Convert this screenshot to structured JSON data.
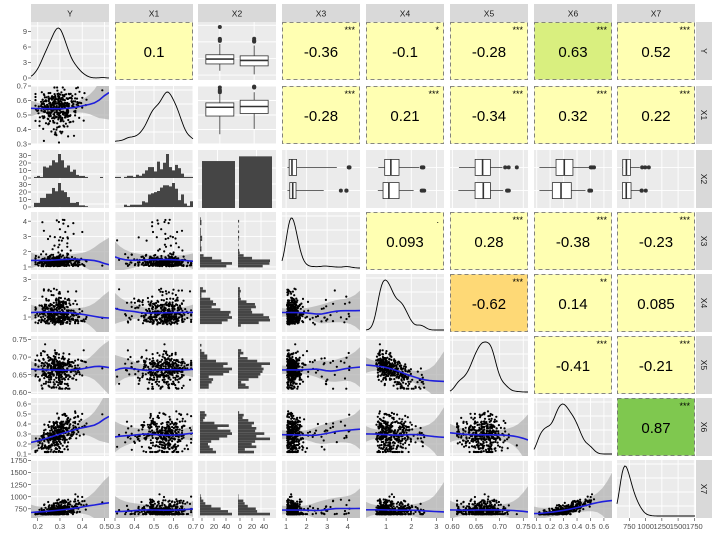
{
  "chart_data": {
    "type": "scatter",
    "variables": [
      "Y",
      "X1",
      "X2",
      "X3",
      "X4",
      "X5",
      "X6",
      "X7"
    ],
    "ranges": {
      "Y": [
        0.17,
        0.52
      ],
      "X1": [
        0.3,
        0.7
      ],
      "X2": [
        0,
        1
      ],
      "X3": [
        0.8,
        4.6
      ],
      "X4": [
        0.2,
        3.3
      ],
      "X5": [
        0.595,
        0.76
      ],
      "X6": [
        0.08,
        0.66
      ],
      "X7": [
        560,
        1760
      ]
    },
    "axis_ticks": {
      "Y": [
        "0.2",
        "0.3",
        "0.4",
        "0.5"
      ],
      "X1": [
        "0.3",
        "0.4",
        "0.5",
        "0.6",
        "0.7"
      ],
      "X3": [
        "1",
        "2",
        "3",
        "4"
      ],
      "X4": [
        "1",
        "2",
        "3"
      ],
      "X5": [
        "0.60",
        "0.65",
        "0.70",
        "0.75"
      ],
      "X6": [
        "0.1",
        "0.2",
        "0.3",
        "0.4",
        "0.5",
        "0.6"
      ],
      "X7": [
        "750",
        "1000",
        "1250",
        "1500",
        "1750"
      ]
    },
    "x_bottom_labels": [
      [
        "0.2",
        "0.3",
        "0.4",
        "0.5"
      ],
      [
        "0.3",
        "0.4",
        "0.5",
        "0.6",
        "0.7"
      ],
      [
        "0",
        "20",
        "40",
        "0",
        "20",
        "40"
      ],
      [
        "1",
        "2",
        "3",
        "4"
      ],
      [
        "1",
        "2",
        "3"
      ],
      [
        "0.60",
        "0.65",
        "0.70",
        "0.75"
      ],
      [
        "0.1",
        "0.2",
        "0.3",
        "0.4",
        "0.5",
        "0.6"
      ],
      [
        "750",
        "1000",
        "1250",
        "1500",
        "1750"
      ]
    ],
    "y_left_labels": [
      [
        "0",
        "3",
        "6",
        "9"
      ],
      [
        "0.3",
        "0.4",
        "0.5",
        "0.6",
        "0.7"
      ],
      [
        "0",
        "10",
        "20",
        "30",
        "0",
        "10",
        "20",
        "30"
      ],
      [
        "1",
        "2",
        "3",
        "4"
      ],
      [
        "1",
        "2",
        "3"
      ],
      [
        "0.60",
        "0.65",
        "0.70",
        "0.75"
      ],
      [
        "0.1",
        "0.2",
        "0.3",
        "0.4",
        "0.5",
        "0.6"
      ],
      [
        "750",
        "1000",
        "1250",
        "1500",
        "1750"
      ]
    ],
    "correlations": [
      {
        "row": "Y",
        "col": "X1",
        "value": "0.1",
        "stars": ""
      },
      {
        "row": "Y",
        "col": "X3",
        "value": "-0.36",
        "stars": "***"
      },
      {
        "row": "Y",
        "col": "X4",
        "value": "-0.1",
        "stars": "*"
      },
      {
        "row": "Y",
        "col": "X5",
        "value": "-0.28",
        "stars": "***"
      },
      {
        "row": "Y",
        "col": "X6",
        "value": "0.63",
        "stars": "***"
      },
      {
        "row": "Y",
        "col": "X7",
        "value": "0.52",
        "stars": "***"
      },
      {
        "row": "X1",
        "col": "X3",
        "value": "-0.28",
        "stars": "***"
      },
      {
        "row": "X1",
        "col": "X4",
        "value": "0.21",
        "stars": "***"
      },
      {
        "row": "X1",
        "col": "X5",
        "value": "-0.34",
        "stars": "***"
      },
      {
        "row": "X1",
        "col": "X6",
        "value": "0.32",
        "stars": "***"
      },
      {
        "row": "X1",
        "col": "X7",
        "value": "0.22",
        "stars": "***"
      },
      {
        "row": "X3",
        "col": "X4",
        "value": "0.093",
        "stars": "."
      },
      {
        "row": "X3",
        "col": "X5",
        "value": "0.28",
        "stars": "***"
      },
      {
        "row": "X3",
        "col": "X6",
        "value": "-0.38",
        "stars": "***"
      },
      {
        "row": "X3",
        "col": "X7",
        "value": "-0.23",
        "stars": "***"
      },
      {
        "row": "X4",
        "col": "X5",
        "value": "-0.62",
        "stars": "***"
      },
      {
        "row": "X4",
        "col": "X6",
        "value": "0.14",
        "stars": "**"
      },
      {
        "row": "X4",
        "col": "X7",
        "value": "0.085",
        "stars": ""
      },
      {
        "row": "X5",
        "col": "X6",
        "value": "-0.41",
        "stars": "***"
      },
      {
        "row": "X5",
        "col": "X7",
        "value": "-0.21",
        "stars": "***"
      },
      {
        "row": "X6",
        "col": "X7",
        "value": "0.87",
        "stars": "***"
      }
    ],
    "x2_bar_counts": [
      40,
      44
    ],
    "colors": {
      "points": "#000000",
      "smooth_line": "#1f1fdc",
      "smooth_band": "#b3b3b3",
      "bars": "#454545",
      "corr_fill_weak": "#ffffb2",
      "corr_fill_mid": "#fed976",
      "corr_fill_pos_mid": "#d9ef7f",
      "corr_fill_pos_strong": "#7fc84f"
    }
  }
}
